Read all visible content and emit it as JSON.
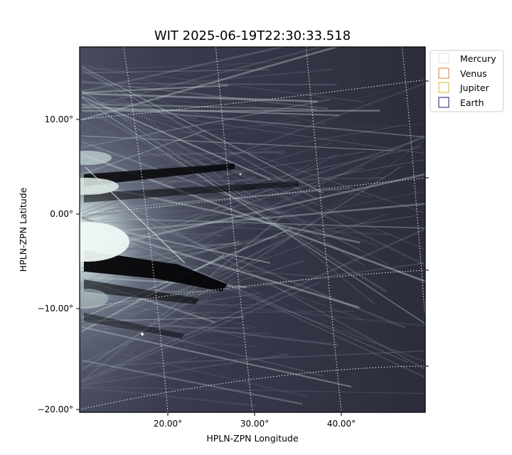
{
  "title": "WIT 2025-06-19T22:30:33.518",
  "x_axis": {
    "label": "HPLN-ZPN Longitude",
    "ticks": [
      "20.00°",
      "30.00°",
      "40.00°"
    ]
  },
  "y_axis": {
    "label": "HPLN-ZPN Latitude",
    "ticks": [
      "10.00°",
      "0.00°",
      "−10.00°",
      "−20.00°"
    ]
  },
  "legend": {
    "placement": "outside-top-right",
    "items": [
      {
        "label": "Mercury",
        "color": "#e0e0e0"
      },
      {
        "label": "Venus",
        "color": "#e07b39"
      },
      {
        "label": "Jupiter",
        "color": "#e0b020"
      },
      {
        "label": "Earth",
        "color": "#1a1a6e"
      }
    ]
  },
  "image": {
    "description_colormap": "bone",
    "grid": true
  },
  "colors": {
    "background_dark": "#2b2c3b",
    "streamer_light": "#c8dcd8",
    "grid_line": "#ffffff"
  }
}
